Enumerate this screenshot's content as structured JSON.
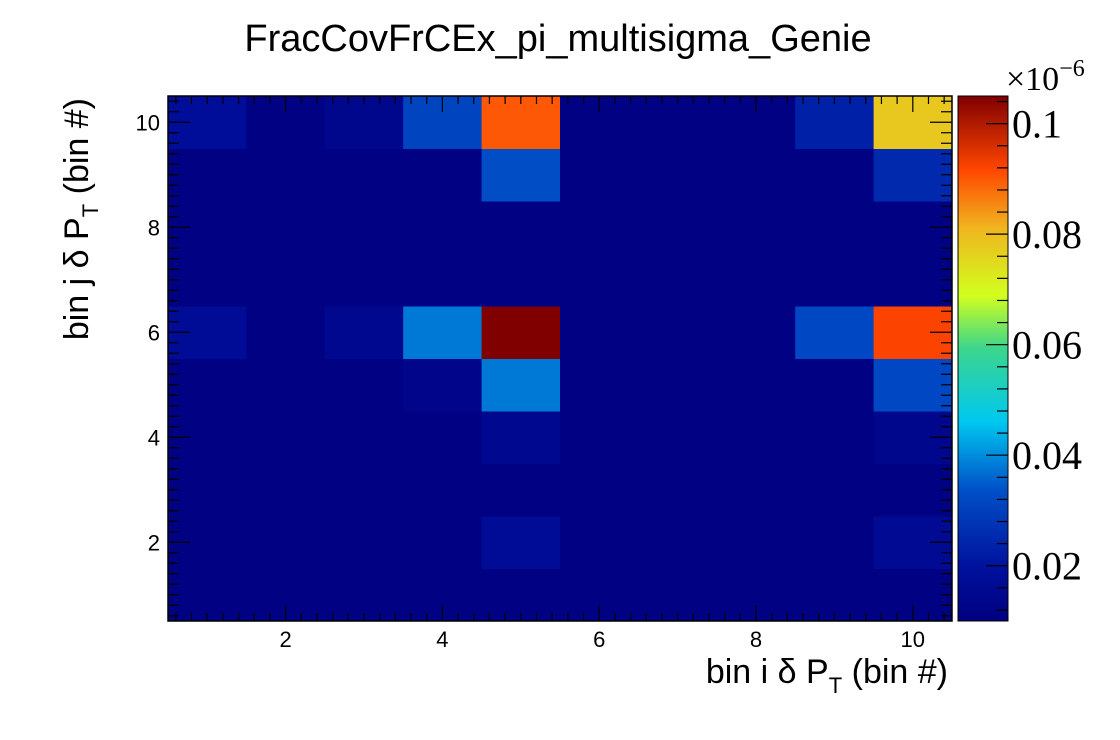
{
  "chart_data": {
    "type": "heatmap",
    "title": "FracCovFrCEx_pi_multisigma_Genie",
    "xlabel": {
      "prefix": "bin i δ P",
      "sub": "T",
      "suffix": " (bin #)"
    },
    "ylabel": {
      "prefix": "bin j δ P",
      "sub": "T",
      "suffix": " (bin #)"
    },
    "x_range": [
      0.5,
      10.5
    ],
    "y_range": [
      0.5,
      10.5
    ],
    "x_ticks": [
      2,
      4,
      6,
      8,
      10
    ],
    "y_ticks": [
      2,
      4,
      6,
      8,
      10
    ],
    "z_range": [
      0.01,
      0.105
    ],
    "z_exponent_label": "×10",
    "z_exponent_power": "−6",
    "z_ticks": [
      0.02,
      0.04,
      0.06,
      0.08,
      0.1
    ],
    "z_tick_labels": [
      "0.02",
      "0.04",
      "0.06",
      "0.08",
      "0.1"
    ],
    "rows_y_ascending": [
      [
        0.011,
        0.011,
        0.011,
        0.011,
        0.011,
        0.011,
        0.011,
        0.011,
        0.011,
        0.011
      ],
      [
        0.011,
        0.011,
        0.011,
        0.011,
        0.017,
        0.011,
        0.011,
        0.011,
        0.011,
        0.016
      ],
      [
        0.011,
        0.011,
        0.011,
        0.011,
        0.011,
        0.011,
        0.011,
        0.011,
        0.011,
        0.011
      ],
      [
        0.011,
        0.011,
        0.011,
        0.011,
        0.015,
        0.011,
        0.011,
        0.011,
        0.011,
        0.014
      ],
      [
        0.011,
        0.011,
        0.011,
        0.013,
        0.038,
        0.011,
        0.011,
        0.011,
        0.011,
        0.032
      ],
      [
        0.017,
        0.011,
        0.015,
        0.038,
        0.105,
        0.011,
        0.011,
        0.011,
        0.032,
        0.092
      ],
      [
        0.011,
        0.011,
        0.011,
        0.011,
        0.011,
        0.011,
        0.011,
        0.011,
        0.011,
        0.011
      ],
      [
        0.011,
        0.011,
        0.011,
        0.011,
        0.011,
        0.011,
        0.011,
        0.011,
        0.011,
        0.011
      ],
      [
        0.011,
        0.011,
        0.011,
        0.011,
        0.033,
        0.011,
        0.011,
        0.011,
        0.011,
        0.025
      ],
      [
        0.018,
        0.011,
        0.014,
        0.031,
        0.09,
        0.011,
        0.011,
        0.011,
        0.023,
        0.078
      ]
    ]
  }
}
